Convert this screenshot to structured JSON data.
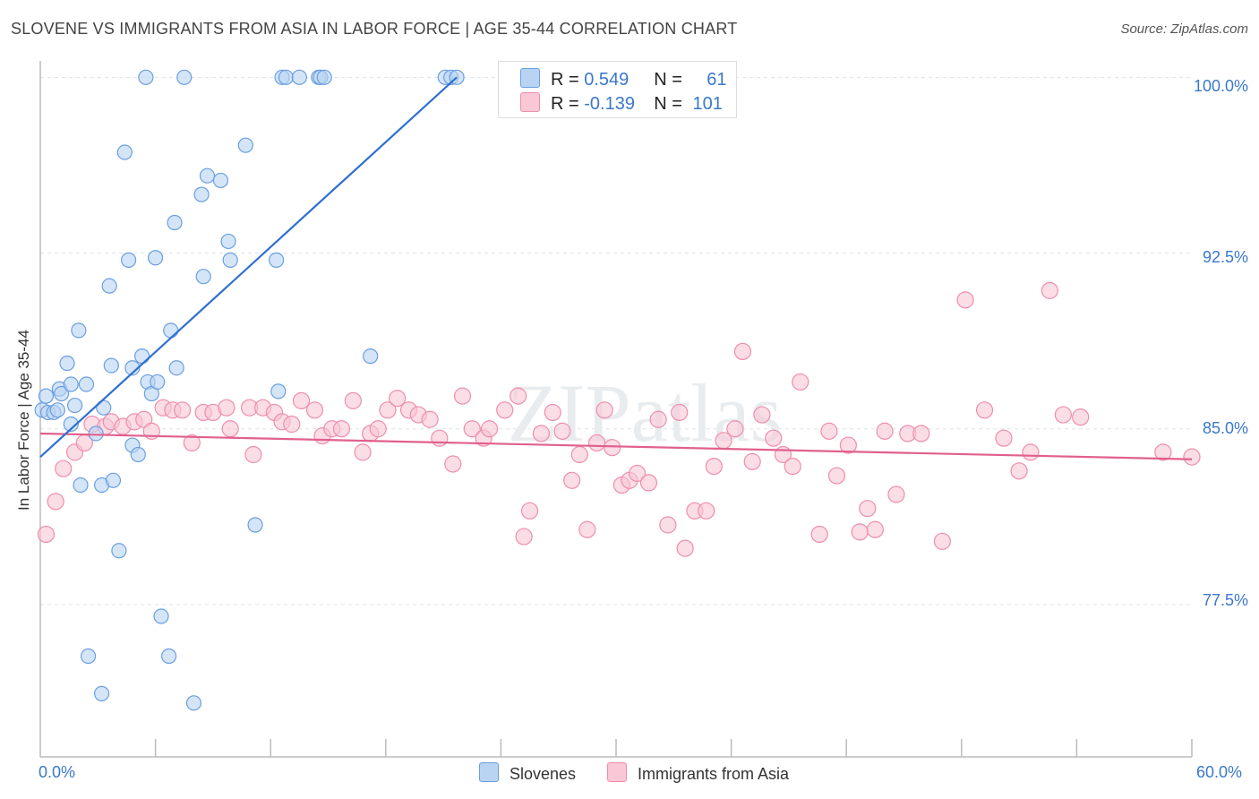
{
  "title": "SLOVENE VS IMMIGRANTS FROM ASIA IN LABOR FORCE | AGE 35-44 CORRELATION CHART",
  "source": "Source: ZipAtlas.com",
  "watermark": "ZIPatlas",
  "colors": {
    "blue_fill": "#b9d3f3",
    "blue_stroke": "#6a9fe0",
    "blue_line": "#2f6fd0",
    "pink_fill": "#f9c7d6",
    "pink_stroke": "#ee8eac",
    "pink_line": "#e0608e",
    "tick_text": "#3a78c9",
    "grid": "#dde3ea"
  },
  "legend_top": {
    "rows": [
      {
        "r_label": "R = ",
        "r_value": "0.549",
        "n_label": "N = ",
        "n_value": "61"
      },
      {
        "r_label": "R = ",
        "r_value": "-0.139",
        "n_label": "N = ",
        "n_value": "101"
      }
    ]
  },
  "chart_data": {
    "type": "scatter",
    "title": "SLOVENE VS IMMIGRANTS FROM ASIA IN LABOR FORCE | AGE 35-44 CORRELATION CHART",
    "xlabel": "",
    "ylabel": "In Labor Force | Age 35-44",
    "xlim": [
      0,
      60
    ],
    "ylim": [
      71.0,
      100.7
    ],
    "x_tick_labels": [
      "0.0%",
      "60.0%"
    ],
    "y_ticks": [
      77.5,
      85.0,
      92.5,
      100.0
    ],
    "y_tick_labels": [
      "77.5%",
      "85.0%",
      "92.5%",
      "100.0%"
    ],
    "legend": [
      "Slovenes",
      "Immigrants from Asia"
    ],
    "series": [
      {
        "name": "Slovenes",
        "r": 0.549,
        "n": 61,
        "trend": {
          "x": [
            0.0,
            21.7
          ],
          "y": [
            83.8,
            100.0
          ]
        },
        "points": [
          [
            0.1,
            85.8
          ],
          [
            0.3,
            86.4
          ],
          [
            0.4,
            85.7
          ],
          [
            0.7,
            85.7
          ],
          [
            0.9,
            85.8
          ],
          [
            1.0,
            86.7
          ],
          [
            1.1,
            86.5
          ],
          [
            1.4,
            87.8
          ],
          [
            1.6,
            85.2
          ],
          [
            1.6,
            86.9
          ],
          [
            1.8,
            86.0
          ],
          [
            2.0,
            89.2
          ],
          [
            2.1,
            82.6
          ],
          [
            2.4,
            86.9
          ],
          [
            2.5,
            75.3
          ],
          [
            2.9,
            84.8
          ],
          [
            3.2,
            82.6
          ],
          [
            3.2,
            73.7
          ],
          [
            3.3,
            85.9
          ],
          [
            3.6,
            91.1
          ],
          [
            3.7,
            87.7
          ],
          [
            3.8,
            82.8
          ],
          [
            4.1,
            79.8
          ],
          [
            4.4,
            96.8
          ],
          [
            4.6,
            92.2
          ],
          [
            4.8,
            84.3
          ],
          [
            4.8,
            87.6
          ],
          [
            5.1,
            83.9
          ],
          [
            5.3,
            88.1
          ],
          [
            5.5,
            100.0
          ],
          [
            5.6,
            87.0
          ],
          [
            5.8,
            86.5
          ],
          [
            6.0,
            92.3
          ],
          [
            6.1,
            87.0
          ],
          [
            6.3,
            77.0
          ],
          [
            6.7,
            75.3
          ],
          [
            6.8,
            89.2
          ],
          [
            7.0,
            93.8
          ],
          [
            7.1,
            87.6
          ],
          [
            7.5,
            100.0
          ],
          [
            8.0,
            73.3
          ],
          [
            8.4,
            95.0
          ],
          [
            8.5,
            91.5
          ],
          [
            8.7,
            95.8
          ],
          [
            9.4,
            95.6
          ],
          [
            9.8,
            93.0
          ],
          [
            9.9,
            92.2
          ],
          [
            10.7,
            97.1
          ],
          [
            11.2,
            80.9
          ],
          [
            12.3,
            92.2
          ],
          [
            12.4,
            86.6
          ],
          [
            12.6,
            100.0
          ],
          [
            12.8,
            100.0
          ],
          [
            13.5,
            100.0
          ],
          [
            14.5,
            100.0
          ],
          [
            14.6,
            100.0
          ],
          [
            14.8,
            100.0
          ],
          [
            17.2,
            88.1
          ],
          [
            21.1,
            100.0
          ],
          [
            21.4,
            100.0
          ],
          [
            21.7,
            100.0
          ]
        ]
      },
      {
        "name": "Immigrants from Asia",
        "r": -0.139,
        "n": 101,
        "trend": {
          "x": [
            0.0,
            60.0
          ],
          "y": [
            84.8,
            83.7
          ]
        },
        "points": [
          [
            0.3,
            80.5
          ],
          [
            0.8,
            81.9
          ],
          [
            1.2,
            83.3
          ],
          [
            1.8,
            84.0
          ],
          [
            2.3,
            84.4
          ],
          [
            2.7,
            85.2
          ],
          [
            3.4,
            85.1
          ],
          [
            3.7,
            85.3
          ],
          [
            4.3,
            85.1
          ],
          [
            4.9,
            85.3
          ],
          [
            5.4,
            85.4
          ],
          [
            5.8,
            84.9
          ],
          [
            6.4,
            85.9
          ],
          [
            6.9,
            85.8
          ],
          [
            7.4,
            85.8
          ],
          [
            7.9,
            84.4
          ],
          [
            8.5,
            85.7
          ],
          [
            9.0,
            85.7
          ],
          [
            9.7,
            85.9
          ],
          [
            9.9,
            85.0
          ],
          [
            10.9,
            85.9
          ],
          [
            11.1,
            83.9
          ],
          [
            11.6,
            85.9
          ],
          [
            12.2,
            85.7
          ],
          [
            12.6,
            85.3
          ],
          [
            13.1,
            85.2
          ],
          [
            13.6,
            86.2
          ],
          [
            14.3,
            85.8
          ],
          [
            14.7,
            84.7
          ],
          [
            15.2,
            85.0
          ],
          [
            15.7,
            85.0
          ],
          [
            16.3,
            86.2
          ],
          [
            16.8,
            84.0
          ],
          [
            17.2,
            84.8
          ],
          [
            17.6,
            85.0
          ],
          [
            18.1,
            85.8
          ],
          [
            18.6,
            86.3
          ],
          [
            19.2,
            85.8
          ],
          [
            19.7,
            85.6
          ],
          [
            20.3,
            85.4
          ],
          [
            20.8,
            84.6
          ],
          [
            21.5,
            83.5
          ],
          [
            22.0,
            86.4
          ],
          [
            22.5,
            85.0
          ],
          [
            23.1,
            84.6
          ],
          [
            23.4,
            85.0
          ],
          [
            24.2,
            85.8
          ],
          [
            24.9,
            86.4
          ],
          [
            25.5,
            81.5
          ],
          [
            25.2,
            80.4
          ],
          [
            26.1,
            84.8
          ],
          [
            26.7,
            85.7
          ],
          [
            27.2,
            84.9
          ],
          [
            27.7,
            82.8
          ],
          [
            28.1,
            83.9
          ],
          [
            28.5,
            80.7
          ],
          [
            29.0,
            84.4
          ],
          [
            29.4,
            85.8
          ],
          [
            29.8,
            84.2
          ],
          [
            30.3,
            82.6
          ],
          [
            30.7,
            82.8
          ],
          [
            31.1,
            83.1
          ],
          [
            31.7,
            82.7
          ],
          [
            32.2,
            85.4
          ],
          [
            32.7,
            80.9
          ],
          [
            33.3,
            85.7
          ],
          [
            33.6,
            79.9
          ],
          [
            34.1,
            81.5
          ],
          [
            34.7,
            81.5
          ],
          [
            35.1,
            83.4
          ],
          [
            35.6,
            84.5
          ],
          [
            36.2,
            85.0
          ],
          [
            36.6,
            88.3
          ],
          [
            37.1,
            83.6
          ],
          [
            37.6,
            85.6
          ],
          [
            38.2,
            84.6
          ],
          [
            38.7,
            83.9
          ],
          [
            39.2,
            83.4
          ],
          [
            39.6,
            87.0
          ],
          [
            40.6,
            80.5
          ],
          [
            41.1,
            84.9
          ],
          [
            41.5,
            83.0
          ],
          [
            42.1,
            84.3
          ],
          [
            42.7,
            80.6
          ],
          [
            43.1,
            81.6
          ],
          [
            43.5,
            80.7
          ],
          [
            44.0,
            84.9
          ],
          [
            44.6,
            82.2
          ],
          [
            45.2,
            84.8
          ],
          [
            45.9,
            84.8
          ],
          [
            47.0,
            80.2
          ],
          [
            48.2,
            90.5
          ],
          [
            49.2,
            85.8
          ],
          [
            50.2,
            84.6
          ],
          [
            51.0,
            83.2
          ],
          [
            51.6,
            84.0
          ],
          [
            52.6,
            90.9
          ],
          [
            53.3,
            85.6
          ],
          [
            54.2,
            85.5
          ],
          [
            58.5,
            84.0
          ],
          [
            60.0,
            83.8
          ]
        ]
      }
    ]
  }
}
